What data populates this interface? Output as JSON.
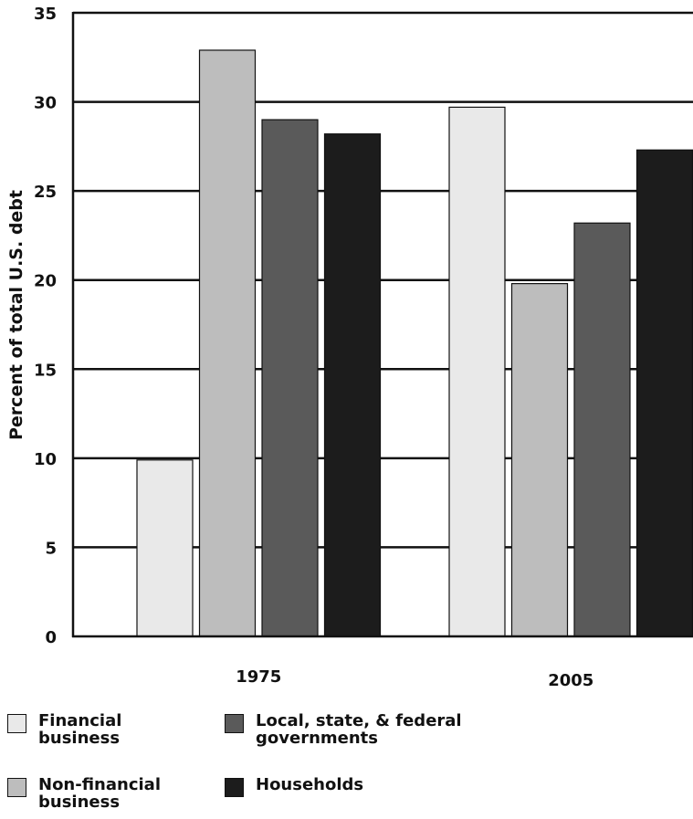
{
  "chart_data": {
    "type": "bar",
    "categories": [
      "1975",
      "2005"
    ],
    "series": [
      {
        "name": "Financial\nbusiness",
        "values": [
          9.9,
          29.7
        ],
        "color": "#e9e9e9"
      },
      {
        "name": "Non-financial\nbusiness",
        "values": [
          32.9,
          19.8
        ],
        "color": "#bdbdbd"
      },
      {
        "name": "Local, state, & federal\ngovernments",
        "values": [
          29.0,
          23.2
        ],
        "color": "#5a5a5a"
      },
      {
        "name": "Households",
        "values": [
          28.2,
          27.3
        ],
        "color": "#1c1c1c"
      }
    ],
    "ylabel": "Percent of total U.S. debt",
    "xlabel": "",
    "ylim": [
      0,
      35
    ],
    "yticks": [
      0,
      5,
      10,
      15,
      20,
      25,
      30,
      35
    ],
    "grid": true,
    "legend_position": "bottom"
  }
}
